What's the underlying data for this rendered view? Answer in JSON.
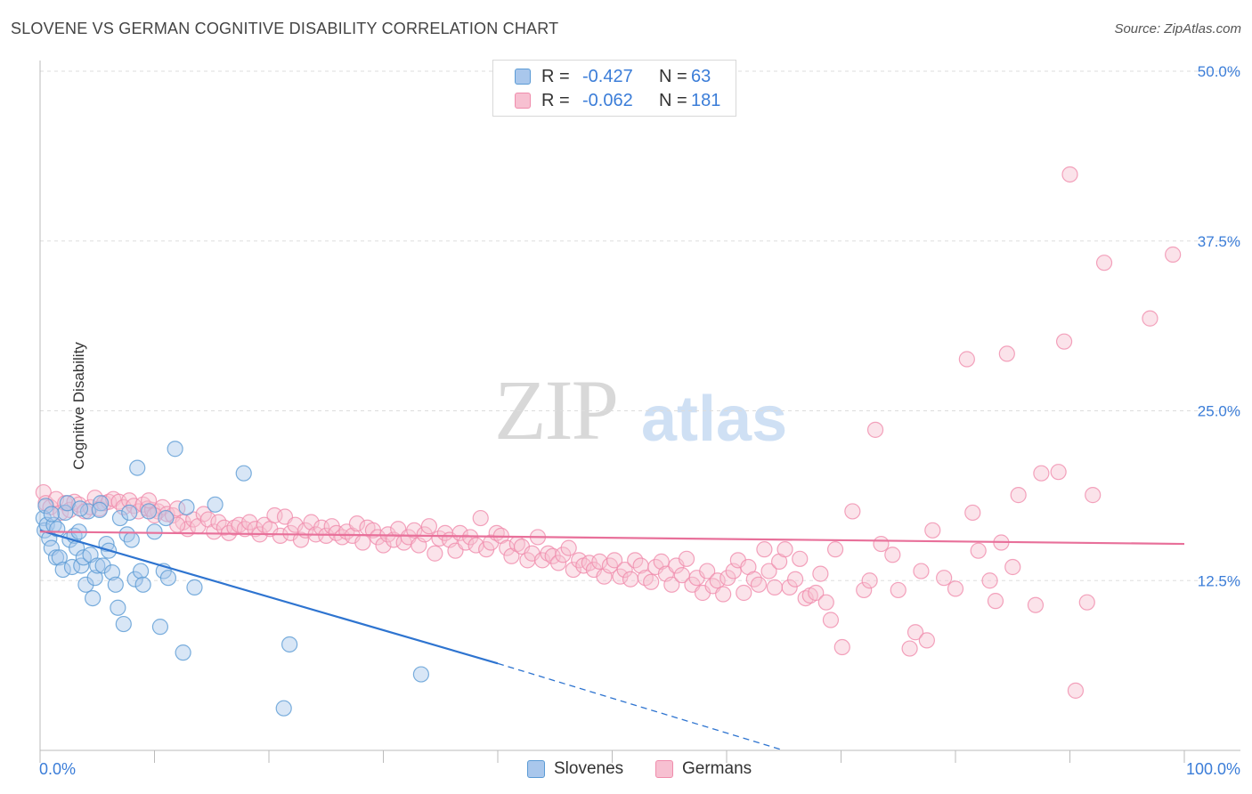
{
  "header": {
    "title": "SLOVENE VS GERMAN COGNITIVE DISABILITY CORRELATION CHART",
    "source": "Source: ZipAtlas.com"
  },
  "watermark": {
    "zip": "ZIP",
    "atlas": "atlas"
  },
  "legend_top": {
    "rows": [
      {
        "r_label": "R =",
        "r_value": "-0.427",
        "n_label": "N =",
        "n_value": "63",
        "color": "#5b9bd5"
      },
      {
        "r_label": "R =",
        "r_value": "-0.062",
        "n_label": "N =",
        "n_value": "181",
        "color": "#f08cac"
      }
    ]
  },
  "legend_bottom": {
    "slovenes": "Slovenes",
    "germans": "Germans"
  },
  "colors": {
    "slovene_fill": "#a9c7ec",
    "slovene_stroke": "#5b9bd5",
    "slovene_line": "#2e74d0",
    "german_fill": "#f7c0d1",
    "german_stroke": "#f08cac",
    "german_line": "#e8709a",
    "axis_text": "#3b7dd8",
    "grid": "#dddddd"
  },
  "chart_data": {
    "type": "scatter",
    "xlabel": "",
    "ylabel": "Cognitive Disability",
    "xlim": [
      0,
      100
    ],
    "ylim": [
      0,
      50
    ],
    "x_tick_labels": [
      "0.0%",
      "100.0%"
    ],
    "y_ticks": [
      12.5,
      25.0,
      37.5,
      50.0
    ],
    "y_tick_labels": [
      "12.5%",
      "25.0%",
      "37.5%",
      "50.0%"
    ],
    "grid": "horizontal dashed",
    "series": [
      {
        "name": "Slovenes",
        "trend": {
          "x0": 0,
          "y0": 16.2,
          "x1": 40,
          "y1": 6.4,
          "dashed_to_x": 65,
          "dashed_to_y": 0
        },
        "points": [
          [
            0.3,
            17.1
          ],
          [
            0.4,
            16.2
          ],
          [
            0.5,
            18.0
          ],
          [
            0.6,
            16.6
          ],
          [
            0.8,
            15.6
          ],
          [
            1.0,
            14.9
          ],
          [
            1.2,
            16.6
          ],
          [
            1.4,
            14.2
          ],
          [
            1.5,
            16.3
          ],
          [
            1.7,
            14.2
          ],
          [
            2.0,
            13.3
          ],
          [
            2.2,
            17.5
          ],
          [
            2.4,
            18.2
          ],
          [
            2.6,
            15.5
          ],
          [
            2.8,
            13.5
          ],
          [
            3.0,
            15.8
          ],
          [
            3.2,
            14.9
          ],
          [
            3.4,
            16.1
          ],
          [
            3.6,
            13.6
          ],
          [
            3.8,
            14.2
          ],
          [
            4.0,
            12.2
          ],
          [
            4.2,
            17.6
          ],
          [
            4.4,
            14.4
          ],
          [
            4.6,
            11.2
          ],
          [
            4.8,
            12.7
          ],
          [
            5.0,
            13.6
          ],
          [
            5.3,
            18.2
          ],
          [
            5.5,
            13.6
          ],
          [
            5.8,
            15.2
          ],
          [
            6.0,
            14.7
          ],
          [
            6.3,
            13.1
          ],
          [
            6.6,
            12.2
          ],
          [
            6.8,
            10.5
          ],
          [
            7.0,
            17.1
          ],
          [
            7.3,
            9.3
          ],
          [
            7.6,
            15.9
          ],
          [
            7.8,
            17.5
          ],
          [
            8.0,
            15.5
          ],
          [
            8.3,
            12.6
          ],
          [
            8.5,
            20.8
          ],
          [
            8.8,
            13.2
          ],
          [
            9.0,
            12.2
          ],
          [
            9.5,
            17.6
          ],
          [
            10.0,
            16.1
          ],
          [
            10.5,
            9.1
          ],
          [
            10.8,
            13.2
          ],
          [
            11.0,
            17.1
          ],
          [
            11.2,
            12.7
          ],
          [
            11.8,
            22.2
          ],
          [
            12.5,
            7.2
          ],
          [
            12.8,
            17.9
          ],
          [
            13.5,
            12.0
          ],
          [
            15.3,
            18.1
          ],
          [
            17.8,
            20.4
          ],
          [
            21.3,
            3.1
          ],
          [
            21.8,
            7.8
          ],
          [
            33.3,
            5.6
          ],
          [
            5.2,
            17.7
          ],
          [
            3.5,
            17.8
          ],
          [
            1.0,
            17.4
          ]
        ]
      },
      {
        "name": "Germans",
        "trend": {
          "x0": 0,
          "y0": 16.1,
          "x1": 100,
          "y1": 15.2
        },
        "points": [
          [
            0.3,
            19.0
          ],
          [
            0.5,
            18.2
          ],
          [
            0.9,
            17.9
          ],
          [
            1.4,
            18.5
          ],
          [
            1.8,
            17.5
          ],
          [
            2.2,
            18.2
          ],
          [
            2.6,
            17.7
          ],
          [
            3.0,
            18.3
          ],
          [
            3.4,
            18.1
          ],
          [
            3.9,
            17.6
          ],
          [
            4.4,
            17.9
          ],
          [
            4.8,
            18.6
          ],
          [
            5.2,
            17.8
          ],
          [
            5.6,
            18.2
          ],
          [
            6.0,
            18.3
          ],
          [
            6.4,
            18.5
          ],
          [
            6.9,
            18.3
          ],
          [
            7.3,
            17.9
          ],
          [
            7.8,
            18.4
          ],
          [
            8.2,
            18.0
          ],
          [
            8.6,
            17.6
          ],
          [
            9.0,
            18.1
          ],
          [
            9.4,
            17.8
          ],
          [
            9.8,
            17.7
          ],
          [
            10.3,
            17.6
          ],
          [
            10.7,
            17.9
          ],
          [
            11.1,
            17.4
          ],
          [
            11.6,
            17.3
          ],
          [
            12.0,
            17.8
          ],
          [
            12.5,
            16.8
          ],
          [
            12.9,
            16.3
          ],
          [
            13.4,
            17.0
          ],
          [
            13.8,
            16.5
          ],
          [
            14.3,
            17.4
          ],
          [
            14.7,
            17.0
          ],
          [
            15.2,
            16.1
          ],
          [
            15.6,
            16.8
          ],
          [
            16.1,
            16.4
          ],
          [
            16.5,
            16.0
          ],
          [
            17.0,
            16.4
          ],
          [
            17.4,
            16.6
          ],
          [
            17.9,
            16.3
          ],
          [
            18.3,
            16.8
          ],
          [
            18.8,
            16.3
          ],
          [
            19.2,
            15.9
          ],
          [
            19.6,
            16.6
          ],
          [
            20.1,
            16.3
          ],
          [
            20.5,
            17.3
          ],
          [
            21.0,
            15.8
          ],
          [
            21.4,
            17.2
          ],
          [
            21.9,
            16.0
          ],
          [
            22.3,
            16.6
          ],
          [
            22.8,
            15.5
          ],
          [
            23.2,
            16.2
          ],
          [
            23.7,
            16.8
          ],
          [
            24.1,
            15.9
          ],
          [
            24.6,
            16.4
          ],
          [
            25.0,
            15.8
          ],
          [
            25.5,
            16.5
          ],
          [
            25.9,
            16.0
          ],
          [
            26.4,
            15.7
          ],
          [
            26.8,
            16.1
          ],
          [
            27.3,
            15.8
          ],
          [
            27.7,
            16.7
          ],
          [
            28.2,
            15.3
          ],
          [
            28.6,
            16.4
          ],
          [
            29.1,
            16.2
          ],
          [
            29.5,
            15.7
          ],
          [
            30.0,
            15.1
          ],
          [
            30.4,
            15.9
          ],
          [
            30.9,
            15.5
          ],
          [
            31.3,
            16.3
          ],
          [
            31.8,
            15.3
          ],
          [
            32.2,
            15.7
          ],
          [
            32.7,
            16.2
          ],
          [
            33.1,
            15.1
          ],
          [
            33.6,
            15.9
          ],
          [
            34.0,
            16.5
          ],
          [
            34.5,
            14.5
          ],
          [
            34.9,
            15.6
          ],
          [
            35.4,
            16.0
          ],
          [
            35.8,
            15.5
          ],
          [
            36.3,
            14.7
          ],
          [
            36.7,
            16.0
          ],
          [
            37.2,
            15.3
          ],
          [
            37.6,
            15.7
          ],
          [
            38.1,
            15.1
          ],
          [
            38.5,
            17.1
          ],
          [
            39.0,
            14.8
          ],
          [
            39.4,
            15.3
          ],
          [
            39.9,
            16.0
          ],
          [
            40.3,
            15.8
          ],
          [
            40.8,
            14.9
          ],
          [
            41.2,
            14.3
          ],
          [
            41.7,
            15.2
          ],
          [
            42.1,
            15.0
          ],
          [
            42.6,
            14.0
          ],
          [
            43.0,
            14.5
          ],
          [
            43.5,
            15.7
          ],
          [
            43.9,
            14.0
          ],
          [
            44.4,
            14.5
          ],
          [
            44.8,
            14.3
          ],
          [
            45.3,
            13.8
          ],
          [
            45.7,
            14.4
          ],
          [
            46.2,
            14.9
          ],
          [
            46.6,
            13.3
          ],
          [
            47.1,
            14.0
          ],
          [
            47.5,
            13.6
          ],
          [
            48.0,
            13.8
          ],
          [
            48.4,
            13.3
          ],
          [
            48.9,
            13.9
          ],
          [
            49.3,
            12.8
          ],
          [
            49.8,
            13.6
          ],
          [
            50.2,
            14.0
          ],
          [
            50.7,
            12.8
          ],
          [
            51.1,
            13.3
          ],
          [
            51.6,
            12.6
          ],
          [
            52.0,
            14.0
          ],
          [
            52.5,
            13.6
          ],
          [
            52.9,
            12.7
          ],
          [
            53.4,
            12.4
          ],
          [
            53.8,
            13.5
          ],
          [
            54.3,
            13.9
          ],
          [
            54.7,
            13.0
          ],
          [
            55.2,
            12.2
          ],
          [
            55.6,
            13.6
          ],
          [
            56.1,
            12.9
          ],
          [
            56.5,
            14.1
          ],
          [
            57.0,
            12.2
          ],
          [
            57.4,
            12.7
          ],
          [
            57.9,
            11.6
          ],
          [
            58.3,
            13.2
          ],
          [
            58.8,
            12.1
          ],
          [
            59.2,
            12.5
          ],
          [
            59.7,
            11.5
          ],
          [
            60.1,
            12.7
          ],
          [
            60.6,
            13.2
          ],
          [
            61.0,
            14.0
          ],
          [
            61.5,
            11.6
          ],
          [
            61.9,
            13.5
          ],
          [
            62.4,
            12.6
          ],
          [
            62.8,
            12.2
          ],
          [
            63.3,
            14.8
          ],
          [
            63.7,
            13.2
          ],
          [
            64.2,
            12.0
          ],
          [
            64.6,
            13.9
          ],
          [
            65.1,
            14.8
          ],
          [
            65.5,
            12.0
          ],
          [
            66.0,
            12.6
          ],
          [
            66.4,
            14.1
          ],
          [
            66.9,
            11.2
          ],
          [
            67.3,
            11.4
          ],
          [
            67.8,
            11.6
          ],
          [
            68.2,
            13.0
          ],
          [
            68.7,
            10.9
          ],
          [
            69.1,
            9.6
          ],
          [
            69.5,
            14.8
          ],
          [
            70.1,
            7.6
          ],
          [
            71.0,
            17.6
          ],
          [
            72.0,
            11.8
          ],
          [
            72.5,
            12.5
          ],
          [
            73.0,
            23.6
          ],
          [
            73.5,
            15.2
          ],
          [
            74.5,
            14.4
          ],
          [
            75.0,
            11.8
          ],
          [
            76.0,
            7.5
          ],
          [
            76.5,
            8.7
          ],
          [
            77.0,
            13.2
          ],
          [
            77.5,
            8.1
          ],
          [
            78.0,
            16.2
          ],
          [
            79.0,
            12.7
          ],
          [
            80.0,
            11.9
          ],
          [
            81.0,
            28.8
          ],
          [
            81.5,
            17.5
          ],
          [
            82.0,
            14.7
          ],
          [
            83.0,
            12.5
          ],
          [
            83.5,
            11.0
          ],
          [
            84.0,
            15.3
          ],
          [
            84.5,
            29.2
          ],
          [
            85.0,
            13.5
          ],
          [
            85.5,
            18.8
          ],
          [
            87.0,
            10.7
          ],
          [
            87.5,
            20.4
          ],
          [
            89.0,
            20.5
          ],
          [
            89.5,
            30.1
          ],
          [
            90.0,
            42.4
          ],
          [
            90.5,
            4.4
          ],
          [
            91.5,
            10.9
          ],
          [
            92.0,
            18.8
          ],
          [
            93.0,
            35.9
          ],
          [
            97.0,
            31.8
          ],
          [
            99.0,
            36.5
          ],
          [
            9.5,
            18.4
          ],
          [
            10.0,
            17.3
          ],
          [
            12.0,
            16.6
          ]
        ]
      }
    ]
  }
}
